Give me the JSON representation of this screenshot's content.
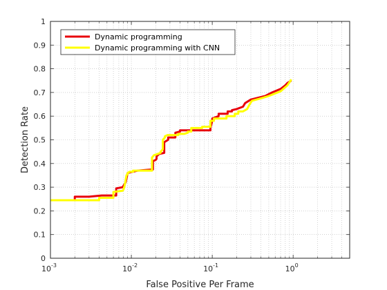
{
  "chart_data": {
    "type": "line",
    "title": "",
    "xlabel": "False Positive Per Frame",
    "ylabel": "Detection Rate",
    "xscale": "log",
    "xlim": [
      0.001,
      5
    ],
    "ylim": [
      0,
      1
    ],
    "grid": "minor-dotted",
    "legend_position": "top-left",
    "x_ticks": [
      {
        "value": 0.001,
        "base": "10",
        "exp": "-3"
      },
      {
        "value": 0.01,
        "base": "10",
        "exp": "-2"
      },
      {
        "value": 0.1,
        "base": "10",
        "exp": "-1"
      },
      {
        "value": 1,
        "base": "10",
        "exp": "0"
      }
    ],
    "y_ticks": [
      {
        "value": 0,
        "label": "0"
      },
      {
        "value": 0.1,
        "label": "0.1"
      },
      {
        "value": 0.2,
        "label": "0.2"
      },
      {
        "value": 0.3,
        "label": "0.3"
      },
      {
        "value": 0.4,
        "label": "0.4"
      },
      {
        "value": 0.5,
        "label": "0.5"
      },
      {
        "value": 0.6,
        "label": "0.6"
      },
      {
        "value": 0.7,
        "label": "0.7"
      },
      {
        "value": 0.8,
        "label": "0.8"
      },
      {
        "value": 0.9,
        "label": "0.9"
      },
      {
        "value": 1,
        "label": "1"
      }
    ],
    "series": [
      {
        "name": "Dynamic programming",
        "color": "#e8000b",
        "x": [
          0.001,
          0.002,
          0.002,
          0.003,
          0.003,
          0.0043,
          0.0043,
          0.0065,
          0.0065,
          0.0078,
          0.0078,
          0.0085,
          0.009,
          0.009,
          0.012,
          0.012,
          0.0185,
          0.0185,
          0.02,
          0.0205,
          0.0205,
          0.022,
          0.0255,
          0.0255,
          0.0285,
          0.0285,
          0.035,
          0.035,
          0.04,
          0.04,
          0.06,
          0.08,
          0.095,
          0.095,
          0.1,
          0.1,
          0.12,
          0.12,
          0.155,
          0.155,
          0.175,
          0.175,
          0.2,
          0.24,
          0.255,
          0.3,
          0.45,
          0.55,
          0.7,
          0.8,
          0.85,
          0.95
        ],
        "y": [
          0.245,
          0.245,
          0.26,
          0.26,
          0.26,
          0.265,
          0.265,
          0.265,
          0.295,
          0.3,
          0.3,
          0.32,
          0.36,
          0.36,
          0.37,
          0.37,
          0.375,
          0.41,
          0.415,
          0.42,
          0.43,
          0.44,
          0.445,
          0.49,
          0.5,
          0.51,
          0.51,
          0.53,
          0.535,
          0.54,
          0.54,
          0.54,
          0.54,
          0.55,
          0.58,
          0.59,
          0.6,
          0.61,
          0.61,
          0.62,
          0.62,
          0.625,
          0.63,
          0.64,
          0.655,
          0.67,
          0.685,
          0.7,
          0.715,
          0.73,
          0.74,
          0.75
        ]
      },
      {
        "name": "Dynamic programming with CNN",
        "color": "#ffff00",
        "x": [
          0.001,
          0.004,
          0.004,
          0.006,
          0.006,
          0.0078,
          0.008,
          0.0083,
          0.0087,
          0.009,
          0.009,
          0.0095,
          0.0105,
          0.0105,
          0.018,
          0.018,
          0.0185,
          0.019,
          0.021,
          0.023,
          0.023,
          0.0245,
          0.0245,
          0.026,
          0.026,
          0.028,
          0.028,
          0.038,
          0.038,
          0.045,
          0.05,
          0.05,
          0.055,
          0.055,
          0.075,
          0.075,
          0.095,
          0.095,
          0.105,
          0.105,
          0.15,
          0.15,
          0.19,
          0.19,
          0.21,
          0.21,
          0.24,
          0.27,
          0.29,
          0.31,
          0.4,
          0.5,
          0.7,
          0.85,
          0.95
        ],
        "y": [
          0.245,
          0.245,
          0.255,
          0.255,
          0.28,
          0.285,
          0.29,
          0.31,
          0.35,
          0.355,
          0.36,
          0.365,
          0.365,
          0.37,
          0.37,
          0.425,
          0.43,
          0.435,
          0.44,
          0.445,
          0.45,
          0.46,
          0.5,
          0.51,
          0.515,
          0.52,
          0.52,
          0.52,
          0.525,
          0.525,
          0.53,
          0.535,
          0.535,
          0.55,
          0.55,
          0.555,
          0.555,
          0.58,
          0.58,
          0.59,
          0.59,
          0.6,
          0.6,
          0.61,
          0.61,
          0.62,
          0.62,
          0.63,
          0.65,
          0.665,
          0.675,
          0.685,
          0.705,
          0.73,
          0.755
        ]
      }
    ]
  }
}
